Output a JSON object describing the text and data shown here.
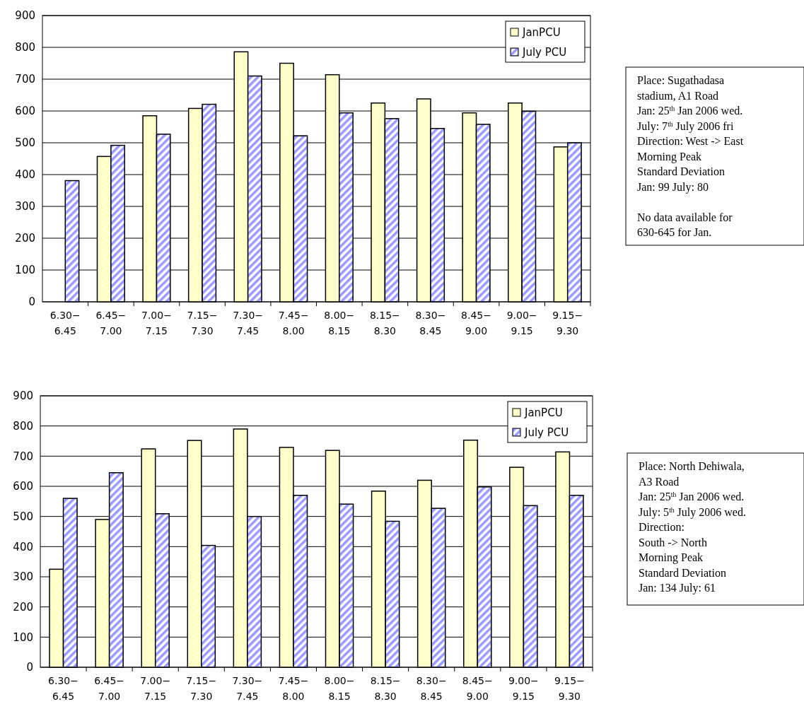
{
  "chart_data": [
    {
      "type": "bar",
      "categories": [
        "6.30−\n6.45",
        "6.45−\n7.00",
        "7.00−\n7.15",
        "7.15−\n7.30",
        "7.30−\n7.45",
        "7.45−\n8.00",
        "8.00−\n8.15",
        "8.15−\n8.30",
        "8.30−\n8.45",
        "8.45−\n9.00",
        "9.00−\n9.15",
        "9.15−\n9.30"
      ],
      "series": [
        {
          "name": "JanPCU",
          "color": "#ffffcc",
          "values": [
            null,
            457,
            585,
            608,
            786,
            750,
            714,
            625,
            638,
            594,
            625,
            487
          ]
        },
        {
          "name": "July PCU",
          "color": "#9999ff",
          "values": [
            381,
            492,
            527,
            621,
            710,
            522,
            594,
            576,
            545,
            558,
            599,
            500
          ]
        }
      ],
      "ylim": [
        0,
        900
      ],
      "yticks": [
        0,
        100,
        200,
        300,
        400,
        500,
        600,
        700,
        800,
        900
      ],
      "grid": "y",
      "legend": "top right",
      "annotations": [
        "Place: Sugathadasa\nstadium, A1 Road\nJan: 25$^{th}$ Jan 2006 wed.\nJuly: 7$^{th}$ July 2006 fri\nDirection: West -> East\nMorning Peak\nStandard Deviation\nJan: 99    July: 80\n\nNo data available for\n630-645 for Jan."
      ]
    },
    {
      "type": "bar",
      "categories": [
        "6.30−\n6.45",
        "6.45−\n7.00",
        "7.00−\n7.15",
        "7.15−\n7.30",
        "7.30−\n7.45",
        "7.45−\n8.00",
        "8.00−\n8.15",
        "8.15−\n8.30",
        "8.30−\n8.45",
        "8.45−\n9.00",
        "9.00−\n9.15",
        "9.15−\n9.30"
      ],
      "series": [
        {
          "name": "JanPCU",
          "color": "#ffffcc",
          "values": [
            325,
            490,
            724,
            752,
            790,
            729,
            719,
            584,
            620,
            753,
            663,
            714
          ]
        },
        {
          "name": "July PCU",
          "color": "#9999ff",
          "values": [
            560,
            645,
            509,
            404,
            500,
            570,
            541,
            484,
            527,
            598,
            536,
            570
          ]
        }
      ],
      "ylim": [
        0,
        900
      ],
      "yticks": [
        0,
        100,
        200,
        300,
        400,
        500,
        600,
        700,
        800,
        900
      ],
      "grid": "y",
      "legend": "top right",
      "annotations": [
        "Place: North Dehiwala,\nA3 Road\nJan: 25$^{th}$ Jan 2006 wed.\nJuly: 5$^{th}$ July 2006 wed.\nDirection:\nSouth -> North\nMorning Peak\nStandard Deviation\nJan: 134 July: 61"
      ]
    }
  ]
}
